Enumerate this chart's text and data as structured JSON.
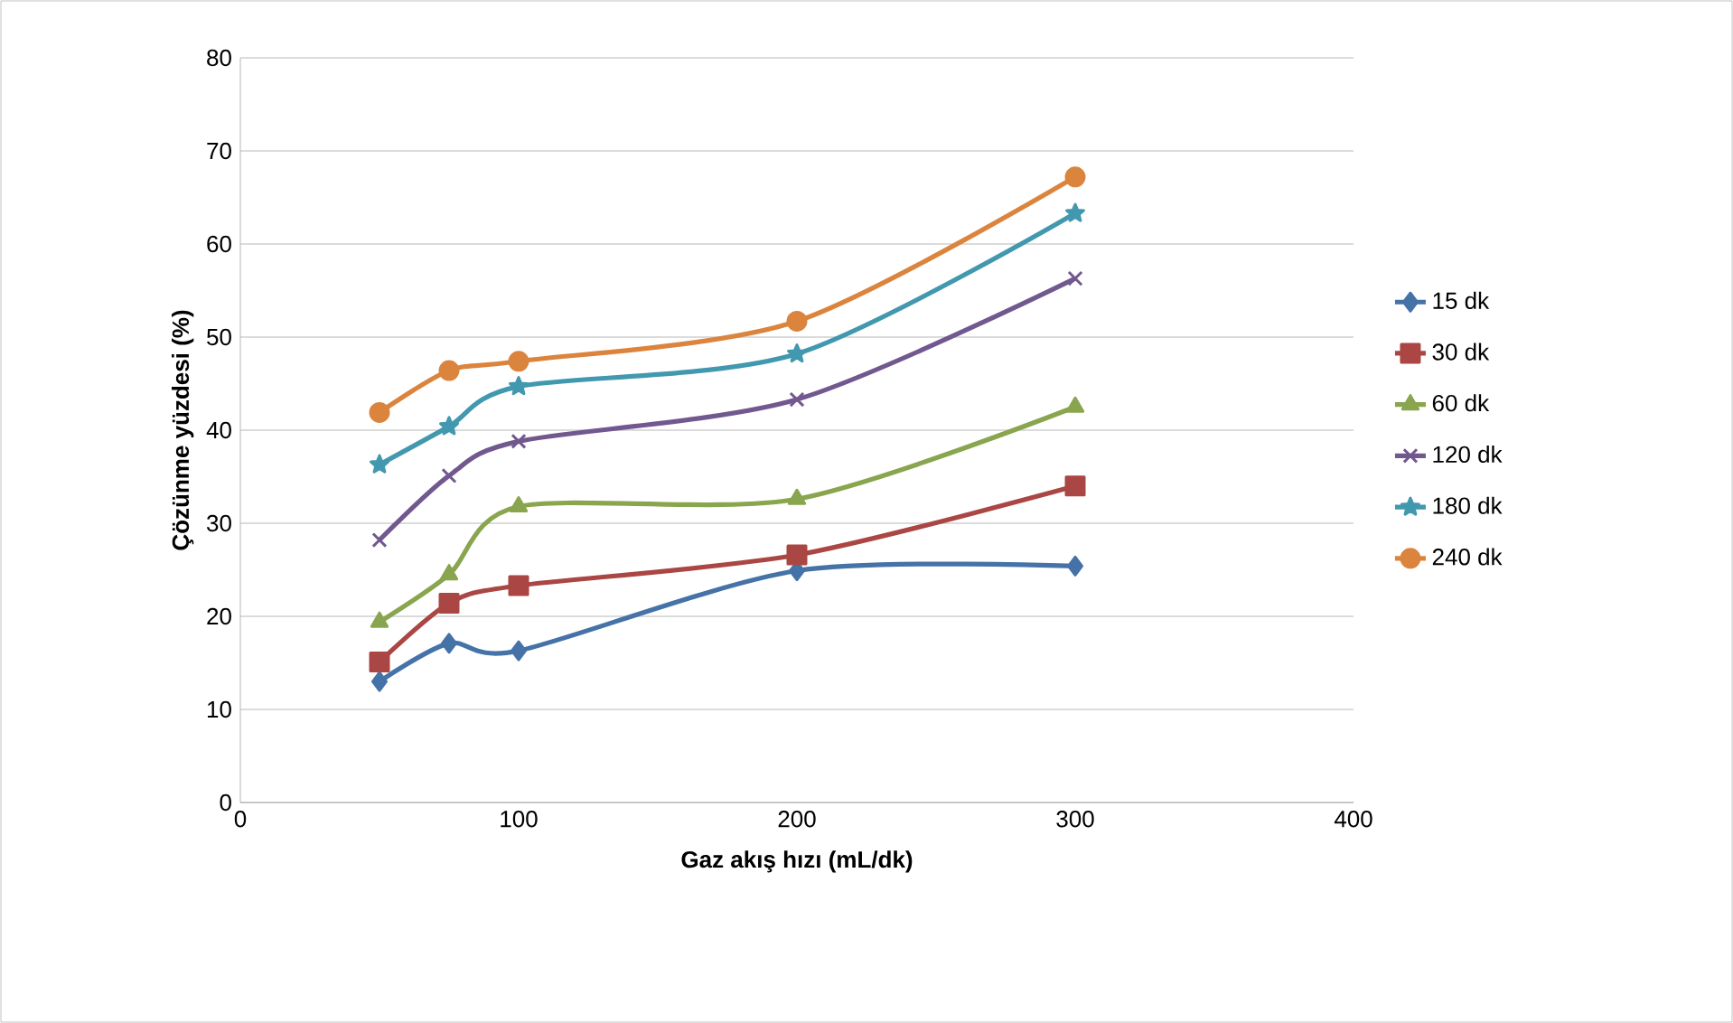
{
  "chart_data": {
    "type": "line",
    "xlabel": "Gaz akış hızı (mL/dk)",
    "ylabel": "Çözünme yüzdesi (%)",
    "xlim": [
      0,
      400
    ],
    "xticks": [
      0,
      100,
      200,
      300,
      400
    ],
    "ylim": [
      0,
      80
    ],
    "yticks": [
      0,
      10,
      20,
      30,
      40,
      50,
      60,
      70,
      80
    ],
    "grid": "y",
    "legend": "right",
    "line_style": "solid",
    "series": [
      {
        "name": "15 dk",
        "color": "#4572a7",
        "marker": "diamond",
        "x": [
          50,
          75,
          100,
          200,
          300
        ],
        "values": [
          13.0,
          17.1,
          16.3,
          24.9,
          25.4
        ]
      },
      {
        "name": "30 dk",
        "color": "#aa4643",
        "marker": "square",
        "x": [
          50,
          75,
          100,
          200,
          300
        ],
        "values": [
          15.1,
          21.4,
          23.3,
          26.6,
          34.0
        ]
      },
      {
        "name": "60 dk",
        "color": "#89a54e",
        "marker": "triangle",
        "x": [
          50,
          75,
          100,
          200,
          300
        ],
        "values": [
          19.4,
          24.5,
          31.8,
          32.6,
          42.5
        ]
      },
      {
        "name": "120 dk",
        "color": "#71588f",
        "marker": "cross",
        "x": [
          50,
          75,
          100,
          200,
          300
        ],
        "values": [
          28.2,
          35.1,
          38.8,
          43.3,
          56.3
        ]
      },
      {
        "name": "180 dk",
        "color": "#4198af",
        "marker": "star",
        "x": [
          50,
          75,
          100,
          200,
          300
        ],
        "values": [
          36.3,
          40.4,
          44.7,
          48.2,
          63.3
        ]
      },
      {
        "name": "240 dk",
        "color": "#db843d",
        "marker": "circle",
        "x": [
          50,
          75,
          100,
          200,
          300
        ],
        "values": [
          41.9,
          46.4,
          47.4,
          51.7,
          67.2
        ]
      }
    ]
  }
}
